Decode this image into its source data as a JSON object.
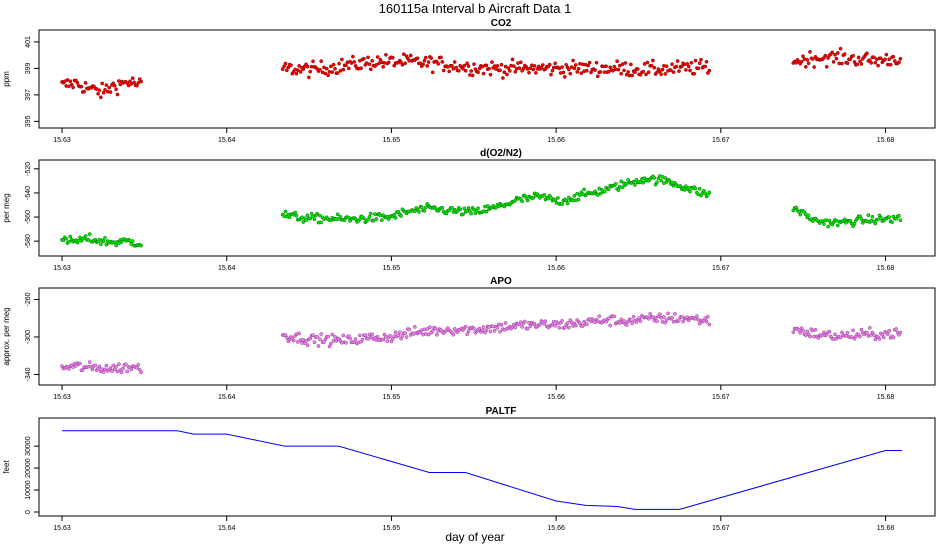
{
  "figure": {
    "title": "160115a   Interval b Aircraft Data 1",
    "xlabel": "day of year"
  },
  "chart_data": [
    {
      "type": "scatter",
      "title": "CO2",
      "ylabel": "ppm",
      "color": "#ff0000",
      "edge_color": "#7a0000",
      "xlim": [
        15.63,
        15.681
      ],
      "ylim": [
        394.8,
        401.6
      ],
      "xticks": [
        15.63,
        15.64,
        15.65,
        15.66,
        15.67,
        15.68
      ],
      "yticks": [
        395,
        397,
        399,
        401
      ],
      "grid": false,
      "segments": [
        {
          "x_start": 15.63,
          "x_end": 15.6348,
          "y": [
            397.7,
            397.9,
            397.5,
            397.2,
            397.7,
            398.0,
            397.7
          ]
        },
        {
          "x_start": 15.6434,
          "x_end": 15.6693,
          "y": [
            399.0,
            398.9,
            399.2,
            399.5,
            399.5,
            399.4,
            399.1,
            399.0,
            399.0,
            399.0,
            399.0,
            399.0,
            398.9,
            399.0,
            399.1
          ]
        },
        {
          "x_start": 15.6744,
          "x_end": 15.6809,
          "y": [
            399.5,
            399.8,
            399.8,
            399.7,
            399.6,
            399.8
          ]
        }
      ],
      "noise": 0.55
    },
    {
      "type": "scatter",
      "title": "d(O2/N2)",
      "ylabel": "per meg",
      "color": "#00ee00",
      "edge_color": "#006400",
      "xlim": [
        15.63,
        15.681
      ],
      "ylim": [
        -589,
        -516
      ],
      "xticks": [
        15.63,
        15.64,
        15.65,
        15.66,
        15.67,
        15.68
      ],
      "yticks": [
        -520,
        -540,
        -560,
        -580
      ],
      "grid": false,
      "segments": [
        {
          "x_start": 15.63,
          "x_end": 15.6348,
          "y": [
            -580,
            -580,
            -578,
            -580,
            -581,
            -580,
            -582
          ]
        },
        {
          "x_start": 15.6434,
          "x_end": 15.6693,
          "y": [
            -558,
            -561,
            -561,
            -562,
            -561,
            -560,
            -555,
            -553,
            -555,
            -556,
            -552,
            -546,
            -543,
            -547,
            -542,
            -538,
            -533,
            -528,
            -530,
            -536,
            -542
          ]
        },
        {
          "x_start": 15.6744,
          "x_end": 15.6809,
          "y": [
            -552,
            -563,
            -565,
            -563,
            -562,
            -561
          ]
        }
      ],
      "noise": 3.5
    },
    {
      "type": "scatter",
      "title": "APO",
      "ylabel": "approx. per meg",
      "color": "#ee82ee",
      "edge_color": "#8b3a8b",
      "xlim": [
        15.63,
        15.681
      ],
      "ylim": [
        -347,
        -252
      ],
      "xticks": [
        15.63,
        15.64,
        15.65,
        15.66,
        15.67,
        15.68
      ],
      "yticks": [
        -260,
        -300,
        -340
      ],
      "grid": false,
      "segments": [
        {
          "x_start": 15.63,
          "x_end": 15.6348,
          "y": [
            -333,
            -331,
            -333,
            -333,
            -334,
            -332,
            -333
          ]
        },
        {
          "x_start": 15.6434,
          "x_end": 15.6693,
          "y": [
            -298,
            -302,
            -303,
            -304,
            -301,
            -300,
            -296,
            -293,
            -292,
            -292,
            -290,
            -288,
            -287,
            -287,
            -285,
            -282,
            -283,
            -281,
            -280,
            -280,
            -283
          ]
        },
        {
          "x_start": 15.6744,
          "x_end": 15.6809,
          "y": [
            -291,
            -297,
            -299,
            -298,
            -297,
            -296
          ]
        }
      ],
      "noise": 5.5
    },
    {
      "type": "line",
      "title": "PALTF",
      "ylabel": "feet",
      "color": "#0000ff",
      "xlim": [
        15.63,
        15.681
      ],
      "ylim": [
        0,
        41000
      ],
      "xticks": [
        15.63,
        15.64,
        15.65,
        15.66,
        15.67,
        15.68
      ],
      "yticks": [
        0,
        10000,
        20000,
        30000
      ],
      "grid": false,
      "x": [
        15.63,
        15.637,
        15.638,
        15.64,
        15.6435,
        15.6468,
        15.6523,
        15.6545,
        15.66,
        15.6618,
        15.6627,
        15.6637,
        15.6648,
        15.6675,
        15.68,
        15.681
      ],
      "y": [
        37000,
        37000,
        35500,
        35500,
        30000,
        30000,
        18000,
        18000,
        5000,
        3000,
        2800,
        2500,
        1200,
        1200,
        28000,
        28000
      ]
    }
  ]
}
